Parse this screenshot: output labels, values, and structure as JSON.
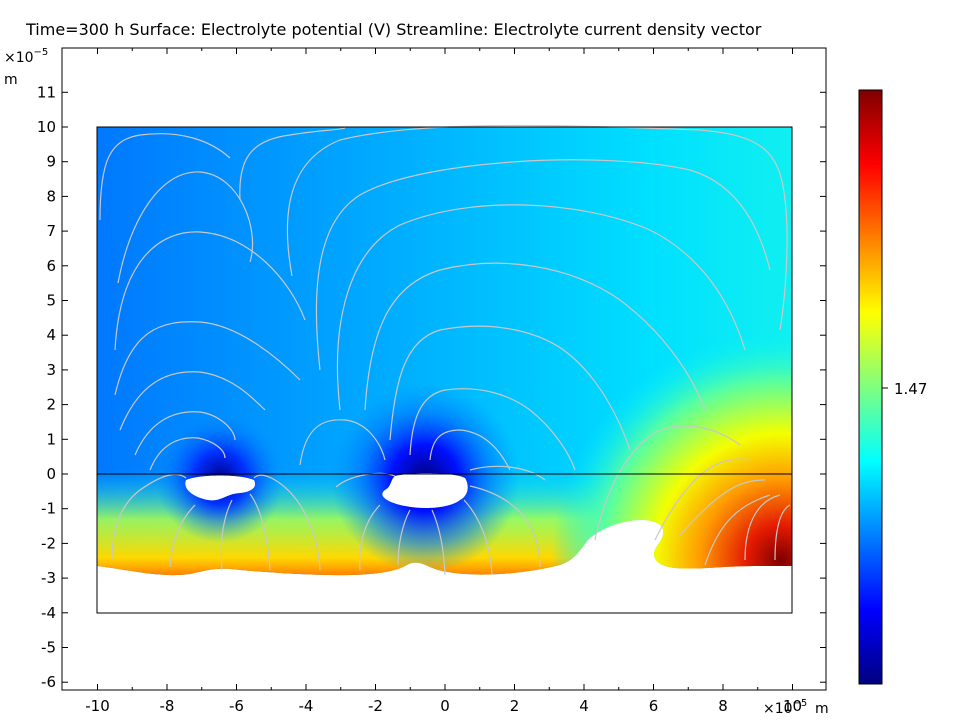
{
  "title": "Time=300 h  Surface: Electrolyte potential (V)  Streamline: Electrolyte current density vector",
  "chart_data": {
    "type": "heatmap",
    "title": "Time=300 h  Surface: Electrolyte potential (V)  Streamline: Electrolyte current density vector",
    "x_unit": "m",
    "y_unit": "m",
    "x_multiplier": "×10",
    "x_exponent": "−5",
    "y_multiplier": "×10",
    "y_exponent": "−5",
    "xlim": [
      -10.3,
      10.3
    ],
    "ylim": [
      -6.2,
      12.3
    ],
    "x_ticks": [
      "-10",
      "-8",
      "-6",
      "-4",
      "-2",
      "0",
      "2",
      "4",
      "6",
      "8",
      "10"
    ],
    "y_ticks": [
      "-6",
      "-5",
      "-4",
      "-3",
      "-2",
      "-1",
      "0",
      "1",
      "2",
      "3",
      "4",
      "5",
      "6",
      "7",
      "8",
      "9",
      "10",
      "11"
    ],
    "domain": {
      "x": [
        -10,
        10
      ],
      "y": [
        -4,
        10
      ]
    },
    "interface_y": 0,
    "colorbar": {
      "colormap": "jet",
      "ticks": [
        "1.47"
      ],
      "tick_value": 1.47
    },
    "streamline_color": "#c8c8c8"
  }
}
